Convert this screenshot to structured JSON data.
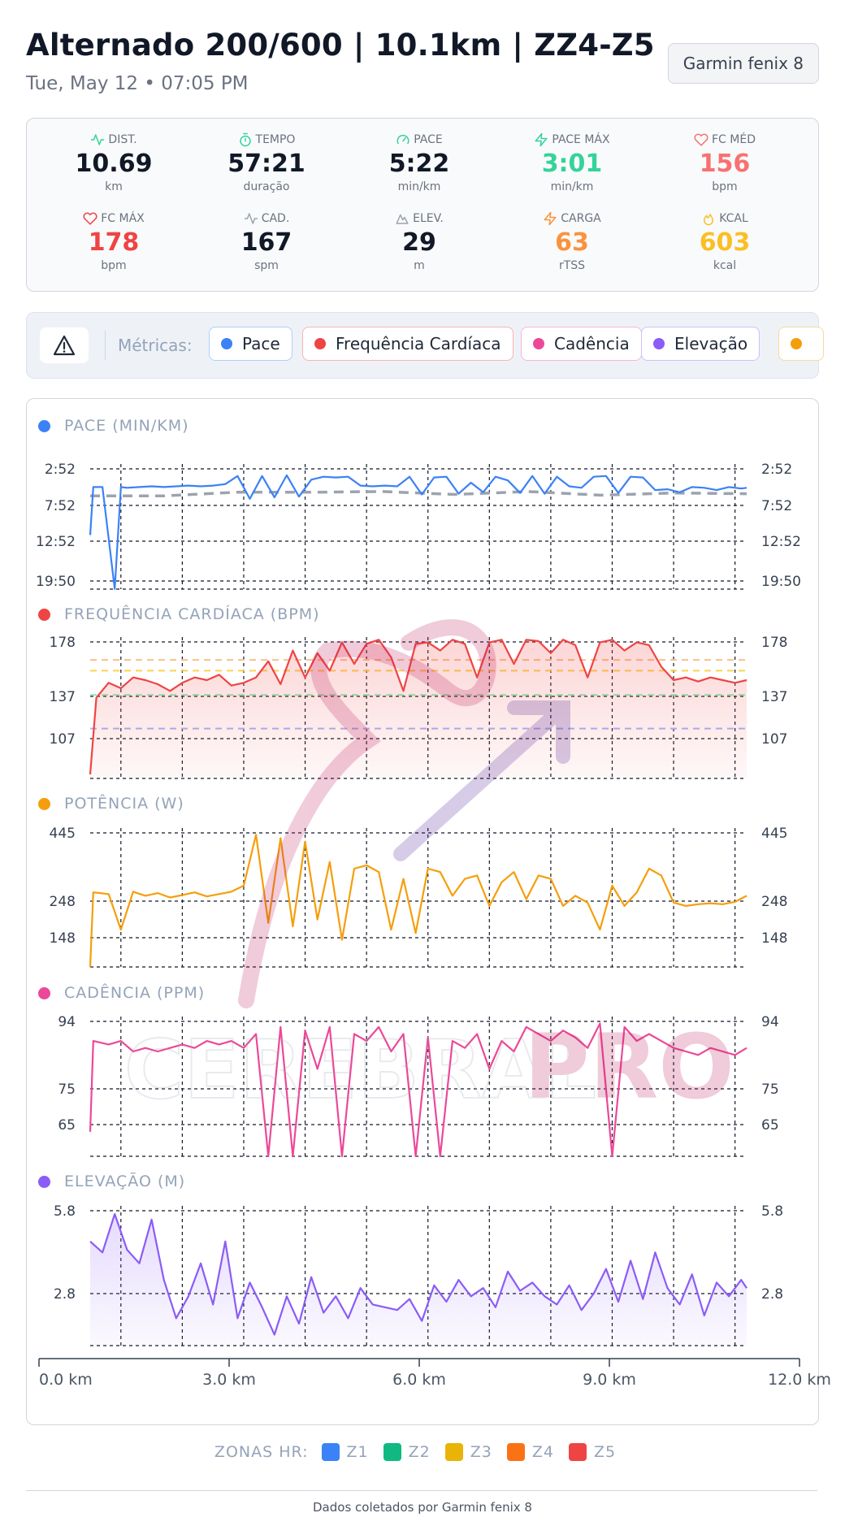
{
  "header": {
    "title": "Alternado 200/600 | 10.1km | ZZ4-Z5",
    "subtitle": "Tue, May 12 • 07:05 PM",
    "device": "Garmin fenix 8"
  },
  "stats": [
    {
      "label": "DIST.",
      "value": "10.69",
      "unit": "km",
      "icon": "activity-icon",
      "color": "#111827",
      "icon_color": "#34d399"
    },
    {
      "label": "TEMPO",
      "value": "57:21",
      "unit": "duração",
      "icon": "timer-icon",
      "color": "#111827",
      "icon_color": "#34d399"
    },
    {
      "label": "PACE",
      "value": "5:22",
      "unit": "min/km",
      "icon": "gauge-icon",
      "color": "#111827",
      "icon_color": "#34d399"
    },
    {
      "label": "PACE MÁX",
      "value": "3:01",
      "unit": "min/km",
      "icon": "zap-icon",
      "color": "#34d399",
      "icon_color": "#34d399"
    },
    {
      "label": "FC MÉD",
      "value": "156",
      "unit": "bpm",
      "icon": "heart-icon",
      "color": "#f87171",
      "icon_color": "#f87171"
    },
    {
      "label": "FC MÁX",
      "value": "178",
      "unit": "bpm",
      "icon": "heart-icon",
      "color": "#ef4444",
      "icon_color": "#ef4444"
    },
    {
      "label": "CAD.",
      "value": "167",
      "unit": "spm",
      "icon": "activity-icon",
      "color": "#111827",
      "icon_color": "#9ca3af"
    },
    {
      "label": "ELEV.",
      "value": "29",
      "unit": "m",
      "icon": "mountain-icon",
      "color": "#111827",
      "icon_color": "#9ca3af"
    },
    {
      "label": "CARGA",
      "value": "63",
      "unit": "rTSS",
      "icon": "zap-icon",
      "color": "#fb923c",
      "icon_color": "#fb923c"
    },
    {
      "label": "KCAL",
      "value": "603",
      "unit": "kcal",
      "icon": "flame-icon",
      "color": "#fbbf24",
      "icon_color": "#fbbf24"
    }
  ],
  "metrics_bar": {
    "label": "Métricas:",
    "chips": [
      {
        "label": "Pace",
        "color": "#3b82f6"
      },
      {
        "label": "Frequência Cardíaca",
        "color": "#ef4444"
      },
      {
        "label": "Cadência",
        "color": "#ec4899"
      },
      {
        "label": "Elevação",
        "color": "#8b5cf6"
      },
      {
        "label": "",
        "color": "#f59e0b"
      }
    ]
  },
  "watermark": {
    "text_left": "CEREBRAL",
    "text_right": "PRO"
  },
  "chart_data": [
    {
      "type": "line",
      "id": "pace",
      "title": "PACE (MIN/KM)",
      "color": "#3b82f6",
      "y_ticks": [
        "2:52",
        "7:52",
        "12:52",
        "19:50"
      ],
      "inverted": true,
      "ylim": [
        2.87,
        19.83
      ],
      "x": [
        0.0,
        0.05,
        0.2,
        0.4,
        0.5,
        0.6,
        0.8,
        1.0,
        1.2,
        1.4,
        1.6,
        1.8,
        2.0,
        2.2,
        2.4,
        2.6,
        2.8,
        3.0,
        3.2,
        3.4,
        3.6,
        3.8,
        4.0,
        4.2,
        4.4,
        4.6,
        4.8,
        5.0,
        5.2,
        5.4,
        5.6,
        5.8,
        6.0,
        6.2,
        6.4,
        6.6,
        6.8,
        7.0,
        7.2,
        7.4,
        7.6,
        7.8,
        8.0,
        8.2,
        8.4,
        8.6,
        8.8,
        9.0,
        9.2,
        9.4,
        9.6,
        9.8,
        10.0,
        10.2,
        10.4,
        10.6,
        10.69
      ],
      "series": [
        {
          "values": [
            12.5,
            6.0,
            6.0,
            19.8,
            6.0,
            6.1,
            6.0,
            5.9,
            6.0,
            5.9,
            5.8,
            5.9,
            5.8,
            5.6,
            4.5,
            7.6,
            4.5,
            7.4,
            4.4,
            7.3,
            5.0,
            4.6,
            4.7,
            4.6,
            5.8,
            5.9,
            5.8,
            5.9,
            4.6,
            7.0,
            4.7,
            4.6,
            6.9,
            5.4,
            6.7,
            4.6,
            5.1,
            6.8,
            4.5,
            6.9,
            4.6,
            5.9,
            6.1,
            4.6,
            4.5,
            6.8,
            4.6,
            4.7,
            6.4,
            6.3,
            6.7,
            6.0,
            6.1,
            6.4,
            6.0,
            6.2,
            6.1
          ]
        }
      ],
      "target": {
        "values": [
          7.2,
          7.2,
          6.7,
          6.7,
          6.6,
          7.0,
          6.6,
          7.1,
          6.8,
          6.9
        ]
      }
    },
    {
      "type": "area",
      "id": "hr",
      "title": "FREQUÊNCIA CARDÍACA (BPM)",
      "color": "#ef4444",
      "y_ticks": [
        "178",
        "137",
        "107"
      ],
      "ylim": [
        75,
        180
      ],
      "zone_lines": [
        {
          "value": 163,
          "color": "#fbbf8c"
        },
        {
          "value": 155,
          "color": "#fcd34d"
        },
        {
          "value": 137,
          "color": "#86efac"
        },
        {
          "value": 112,
          "color": "#a5b4fc"
        }
      ],
      "x": [
        0.0,
        0.1,
        0.3,
        0.5,
        0.7,
        0.9,
        1.1,
        1.3,
        1.5,
        1.7,
        1.9,
        2.1,
        2.3,
        2.5,
        2.7,
        2.9,
        3.1,
        3.3,
        3.5,
        3.7,
        3.9,
        4.1,
        4.3,
        4.5,
        4.7,
        4.9,
        5.1,
        5.3,
        5.5,
        5.7,
        5.9,
        6.1,
        6.3,
        6.5,
        6.7,
        6.9,
        7.1,
        7.3,
        7.5,
        7.7,
        7.9,
        8.1,
        8.3,
        8.5,
        8.7,
        8.9,
        9.1,
        9.3,
        9.5,
        9.7,
        9.9,
        10.1,
        10.3,
        10.5,
        10.69
      ],
      "series": [
        {
          "values": [
            78,
            135,
            146,
            142,
            150,
            148,
            145,
            140,
            146,
            150,
            148,
            152,
            144,
            146,
            150,
            162,
            145,
            170,
            150,
            168,
            155,
            176,
            160,
            175,
            178,
            165,
            140,
            175,
            176,
            170,
            178,
            175,
            150,
            176,
            178,
            160,
            178,
            177,
            168,
            178,
            174,
            150,
            176,
            178,
            170,
            176,
            174,
            158,
            148,
            150,
            147,
            150,
            148,
            146,
            148
          ]
        }
      ]
    },
    {
      "type": "line",
      "id": "power",
      "title": "POTÊNCIA (W)",
      "color": "#f59e0b",
      "y_ticks": [
        "445",
        "248",
        "148"
      ],
      "ylim": [
        40,
        450
      ],
      "x": [
        0.0,
        0.05,
        0.3,
        0.5,
        0.7,
        0.9,
        1.1,
        1.3,
        1.5,
        1.7,
        1.9,
        2.1,
        2.3,
        2.5,
        2.7,
        2.9,
        3.1,
        3.3,
        3.5,
        3.7,
        3.9,
        4.1,
        4.3,
        4.5,
        4.7,
        4.9,
        5.1,
        5.3,
        5.5,
        5.7,
        5.9,
        6.1,
        6.3,
        6.5,
        6.7,
        6.9,
        7.1,
        7.3,
        7.5,
        7.7,
        7.9,
        8.1,
        8.3,
        8.5,
        8.7,
        8.9,
        9.1,
        9.3,
        9.5,
        9.7,
        9.9,
        10.1,
        10.3,
        10.5,
        10.69
      ],
      "series": [
        {
          "values": [
            40,
            260,
            255,
            150,
            262,
            250,
            258,
            245,
            252,
            260,
            248,
            255,
            262,
            280,
            430,
            170,
            420,
            160,
            410,
            180,
            350,
            120,
            330,
            340,
            320,
            150,
            300,
            140,
            330,
            320,
            250,
            300,
            310,
            220,
            290,
            320,
            240,
            310,
            300,
            220,
            250,
            230,
            150,
            280,
            220,
            260,
            330,
            310,
            230,
            220,
            225,
            228,
            225,
            232,
            250
          ]
        }
      ]
    },
    {
      "type": "line",
      "id": "cadence",
      "title": "CADÊNCIA (PPM)",
      "color": "#ec4899",
      "y_ticks": [
        "94",
        "75",
        "65"
      ],
      "ylim": [
        55,
        95
      ],
      "x": [
        0.0,
        0.05,
        0.3,
        0.5,
        0.7,
        0.9,
        1.1,
        1.3,
        1.5,
        1.7,
        1.9,
        2.1,
        2.3,
        2.5,
        2.7,
        2.9,
        3.1,
        3.3,
        3.5,
        3.7,
        3.9,
        4.1,
        4.3,
        4.5,
        4.7,
        4.9,
        5.1,
        5.3,
        5.5,
        5.7,
        5.9,
        6.1,
        6.3,
        6.5,
        6.7,
        6.9,
        7.1,
        7.3,
        7.5,
        7.7,
        7.9,
        8.1,
        8.3,
        8.5,
        8.7,
        8.9,
        9.1,
        9.3,
        9.5,
        9.7,
        9.9,
        10.1,
        10.3,
        10.5,
        10.69
      ],
      "series": [
        {
          "values": [
            62,
            88,
            87,
            88,
            85,
            86,
            85,
            86,
            87,
            86,
            88,
            87,
            88,
            86,
            90,
            55,
            92,
            55,
            91,
            80,
            92,
            55,
            90,
            88,
            92,
            85,
            90,
            55,
            89,
            55,
            88,
            86,
            90,
            80,
            88,
            85,
            92,
            90,
            88,
            91,
            89,
            86,
            93,
            55,
            92,
            88,
            90,
            88,
            86,
            85,
            84,
            86,
            85,
            84,
            86
          ]
        }
      ]
    },
    {
      "type": "area",
      "id": "elevation",
      "title": "ELEVAÇÃO (M)",
      "color": "#8b5cf6",
      "y_ticks": [
        "5.8",
        "2.8"
      ],
      "ylim": [
        0.8,
        5.9
      ],
      "x": [
        0.0,
        0.2,
        0.4,
        0.6,
        0.8,
        1.0,
        1.2,
        1.4,
        1.6,
        1.8,
        2.0,
        2.2,
        2.4,
        2.6,
        2.8,
        3.0,
        3.2,
        3.4,
        3.6,
        3.8,
        4.0,
        4.2,
        4.4,
        4.6,
        4.8,
        5.0,
        5.2,
        5.4,
        5.6,
        5.8,
        6.0,
        6.2,
        6.4,
        6.6,
        6.8,
        7.0,
        7.2,
        7.4,
        7.6,
        7.8,
        8.0,
        8.2,
        8.4,
        8.6,
        8.8,
        9.0,
        9.2,
        9.4,
        9.6,
        9.8,
        10.0,
        10.2,
        10.4,
        10.6,
        10.69
      ],
      "series": [
        {
          "values": [
            4.6,
            4.2,
            5.6,
            4.3,
            3.8,
            5.4,
            3.2,
            1.8,
            2.6,
            3.8,
            2.3,
            4.6,
            1.8,
            3.1,
            2.2,
            1.2,
            2.6,
            1.6,
            3.3,
            2.0,
            2.6,
            1.8,
            2.9,
            2.3,
            2.2,
            2.1,
            2.5,
            1.7,
            3.0,
            2.4,
            3.2,
            2.6,
            2.9,
            2.2,
            3.5,
            2.8,
            3.1,
            2.6,
            2.3,
            3.0,
            2.1,
            2.7,
            3.6,
            2.4,
            3.9,
            2.5,
            4.2,
            2.9,
            2.3,
            3.4,
            1.9,
            3.1,
            2.6,
            3.2,
            2.9
          ]
        }
      ]
    }
  ],
  "x_axis": {
    "ticks": [
      "0.0 km",
      "3.0 km",
      "6.0 km",
      "9.0 km",
      "12.0 km"
    ],
    "xlim": [
      0,
      12
    ]
  },
  "zones": {
    "label": "ZONAS HR:",
    "items": [
      {
        "label": "Z1",
        "color": "#3b82f6"
      },
      {
        "label": "Z2",
        "color": "#10b981"
      },
      {
        "label": "Z3",
        "color": "#eab308"
      },
      {
        "label": "Z4",
        "color": "#f97316"
      },
      {
        "label": "Z5",
        "color": "#ef4444"
      }
    ]
  },
  "footer": "Dados coletados por Garmin fenix 8"
}
